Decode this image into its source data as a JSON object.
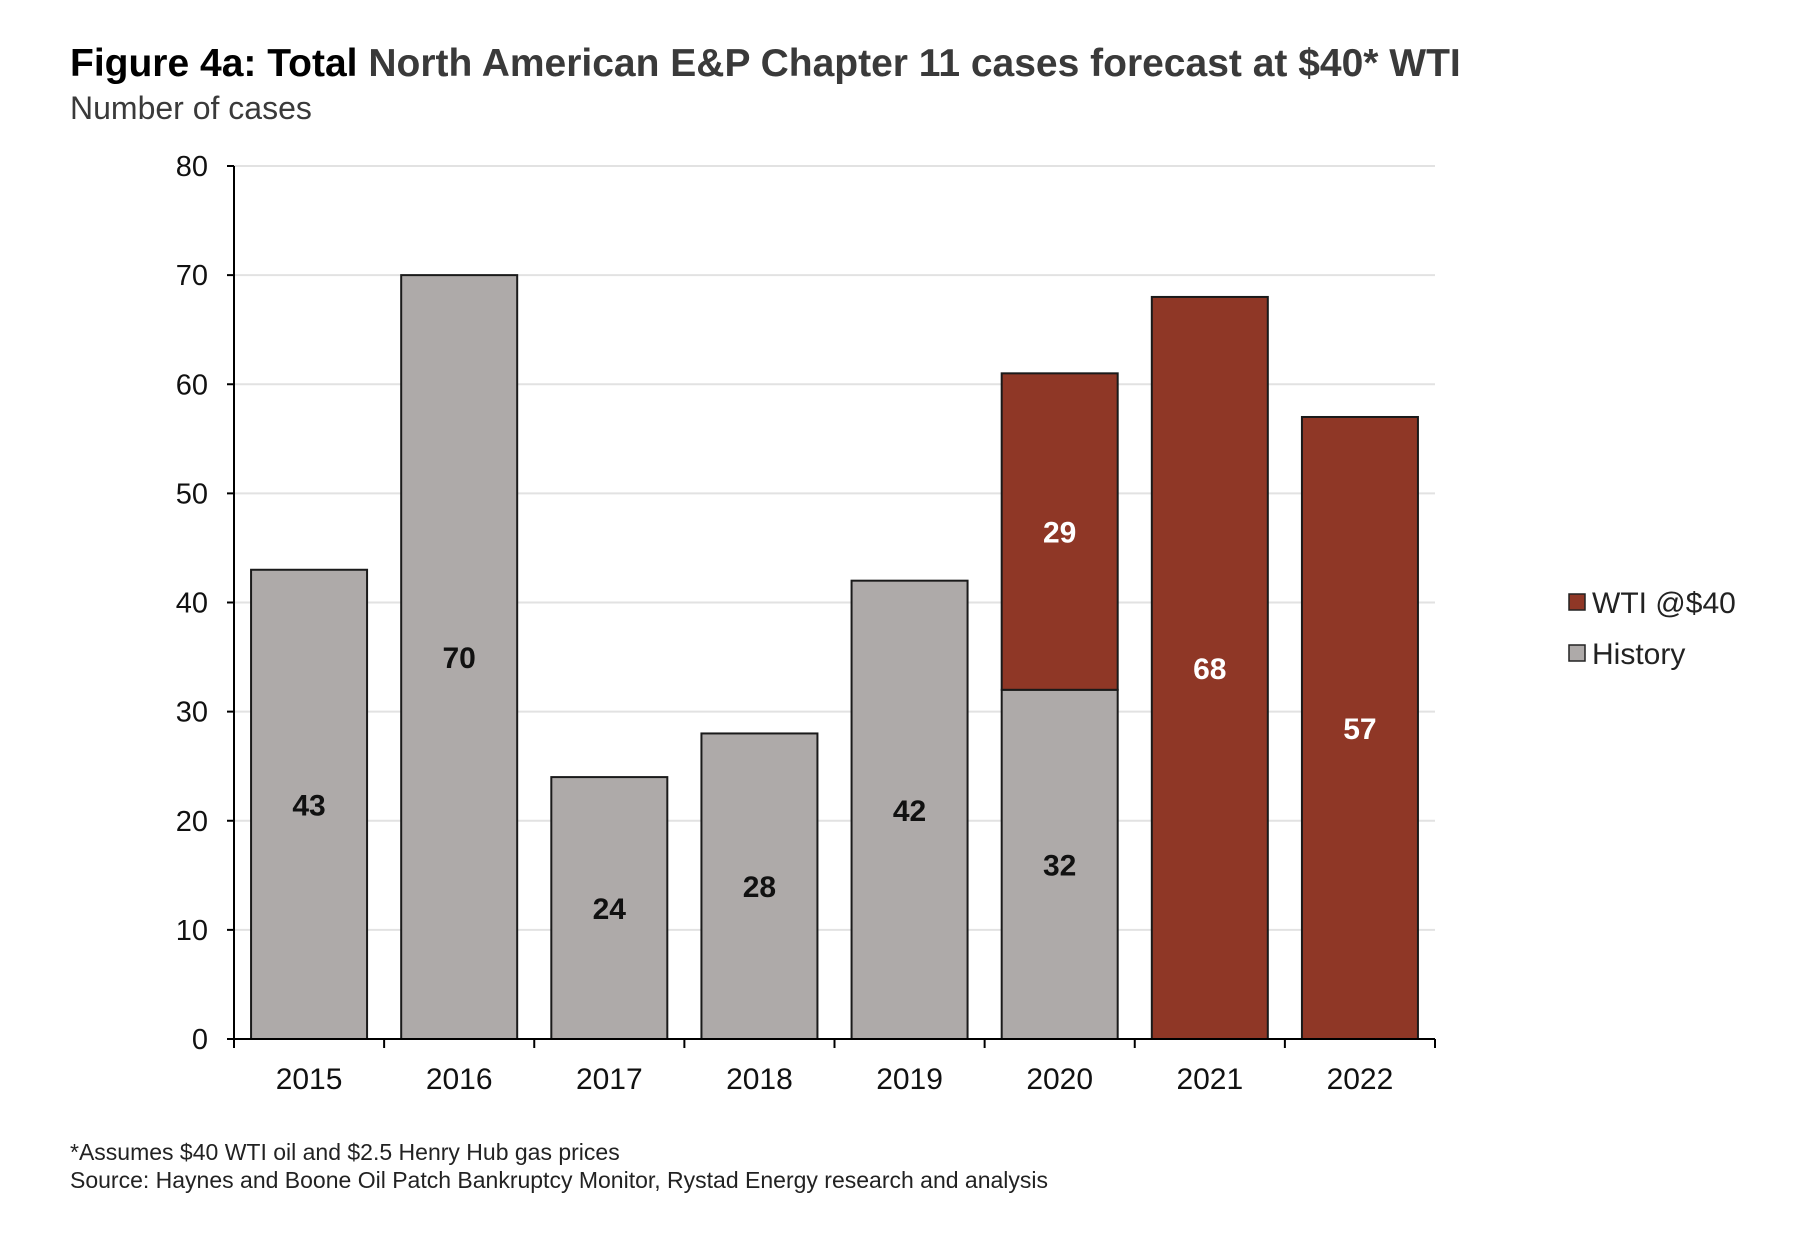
{
  "chart_data": {
    "type": "bar",
    "stacked": true,
    "title_prefix": "Figure 4a: Total",
    "title_rest": "North American E&P Chapter 11 cases forecast at $40* WTI",
    "subtitle": "Number of cases",
    "categories": [
      "2015",
      "2016",
      "2017",
      "2018",
      "2019",
      "2020",
      "2021",
      "2022"
    ],
    "series": [
      {
        "name": "History",
        "color": "#aeaaa9",
        "label_color": "#111111",
        "values": [
          43,
          70,
          24,
          28,
          42,
          32,
          0,
          0
        ]
      },
      {
        "name": "WTI @$40",
        "color": "#8f3726",
        "label_color": "#ffffff",
        "values": [
          0,
          0,
          0,
          0,
          0,
          29,
          68,
          57
        ]
      }
    ],
    "legend_order": [
      "WTI @$40",
      "History"
    ],
    "ylim": [
      0,
      80
    ],
    "yticks": [
      "0",
      "10",
      "20",
      "30",
      "40",
      "50",
      "60",
      "70",
      "80"
    ],
    "grid": true,
    "legend": "right",
    "footnotes": [
      "*Assumes $40 WTI oil and $2.5 Henry Hub gas prices",
      "Source: Haynes and Boone Oil Patch Bankruptcy Monitor, Rystad Energy research and analysis"
    ]
  }
}
